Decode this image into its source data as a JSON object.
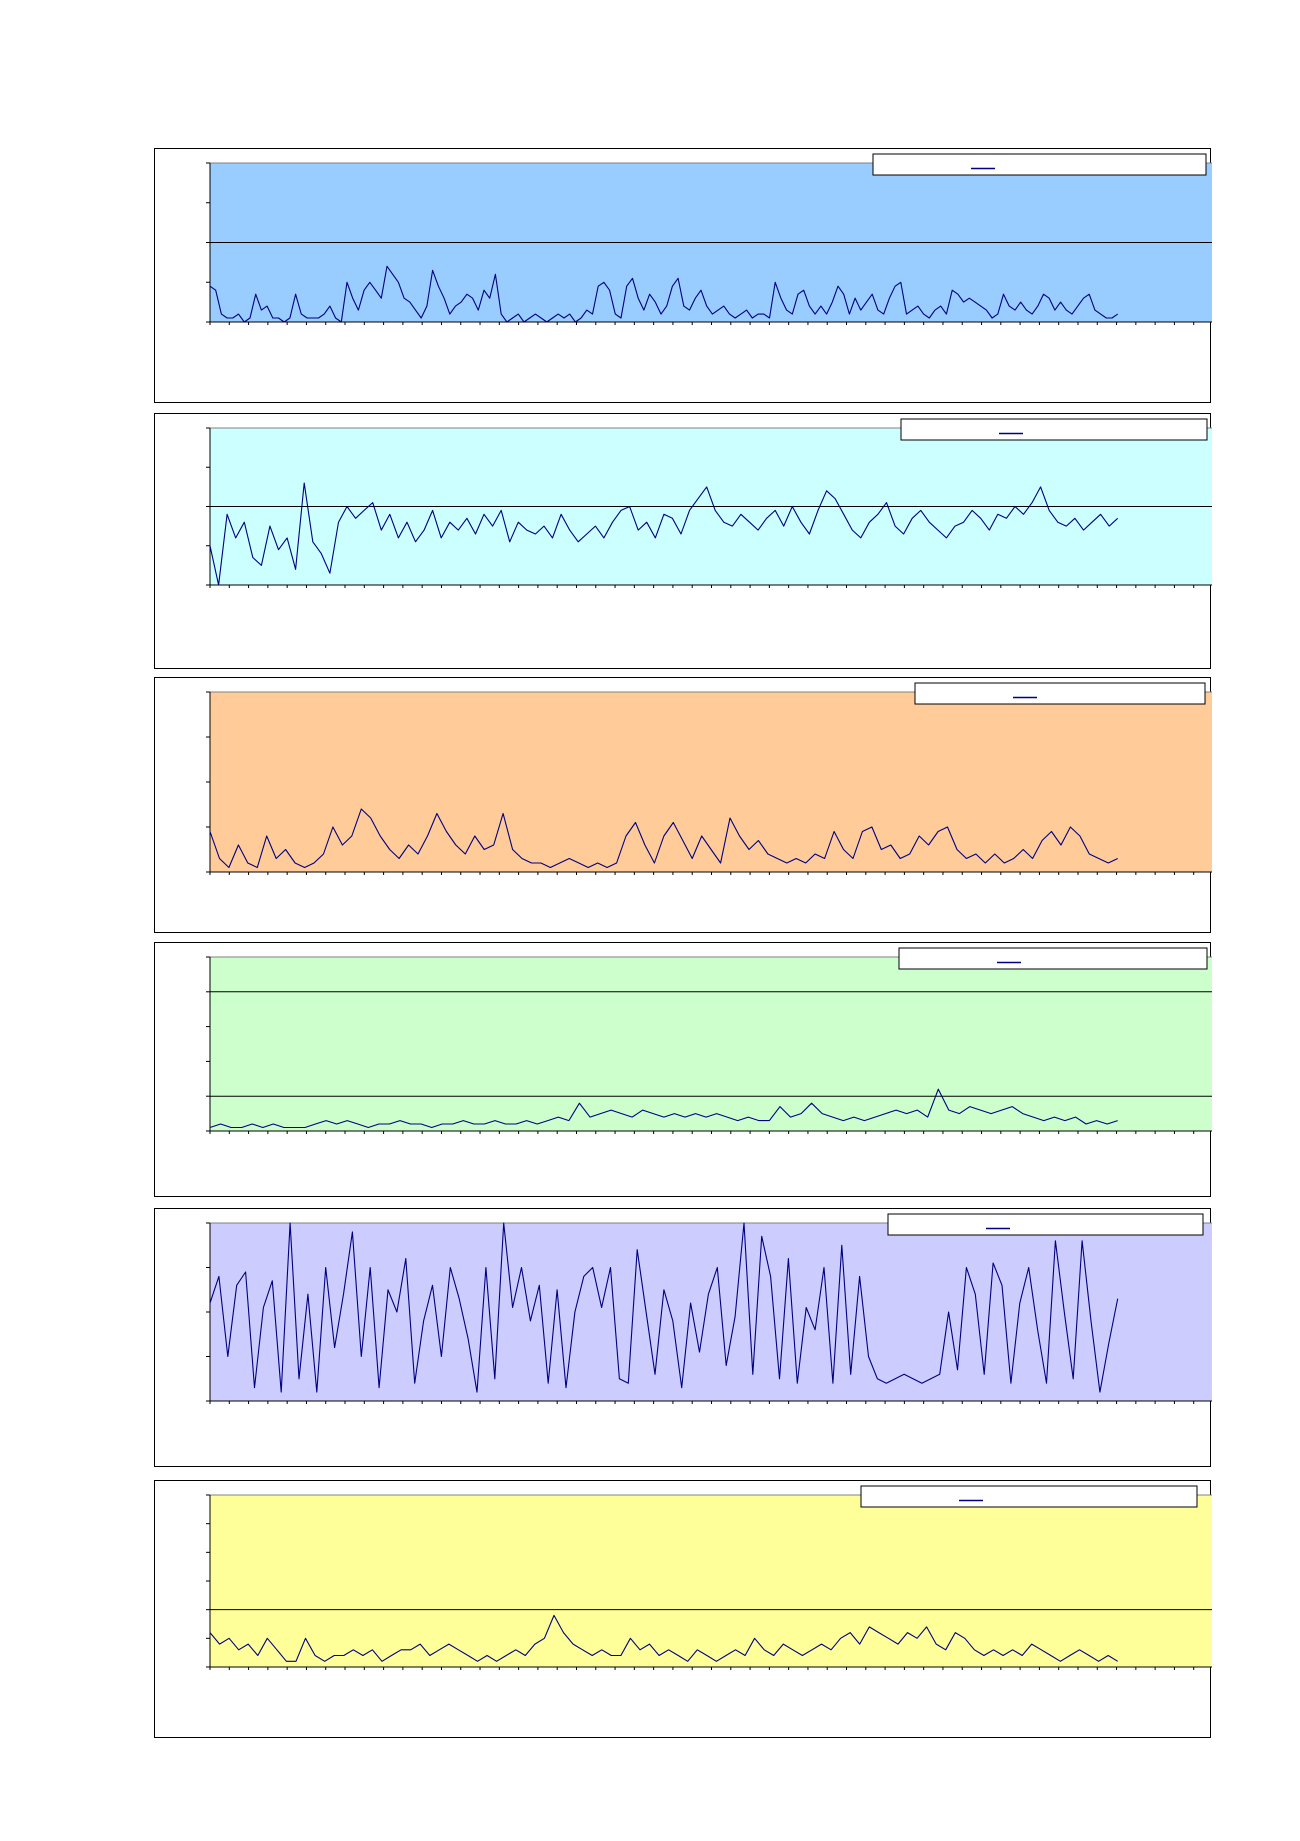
{
  "chart_data": [
    {
      "type": "line",
      "title": "",
      "xlabel": "",
      "ylabel": "",
      "ylim": [
        0,
        4
      ],
      "gridlines": [
        2
      ],
      "grid": true,
      "legend": "top-right",
      "legend_text": "",
      "plot_color": "#99ccff",
      "series": [
        {
          "color": "#000080",
          "values": [
            0.9,
            0.8,
            0.2,
            0.1,
            0.1,
            0.2,
            0.0,
            0.1,
            0.7,
            0.3,
            0.4,
            0.1,
            0.1,
            0.0,
            0.1,
            0.7,
            0.2,
            0.1,
            0.1,
            0.1,
            0.2,
            0.4,
            0.1,
            0.0,
            1.0,
            0.6,
            0.3,
            0.8,
            1.0,
            0.8,
            0.6,
            1.4,
            1.2,
            1.0,
            0.6,
            0.5,
            0.3,
            0.1,
            0.4,
            1.3,
            0.9,
            0.6,
            0.2,
            0.4,
            0.5,
            0.7,
            0.6,
            0.3,
            0.8,
            0.6,
            1.2,
            0.2,
            0.0,
            0.1,
            0.2,
            0.0,
            0.1,
            0.2,
            0.1,
            0.0,
            0.1,
            0.2,
            0.1,
            0.2,
            0.0,
            0.1,
            0.3,
            0.2,
            0.9,
            1.0,
            0.8,
            0.2,
            0.1,
            0.9,
            1.1,
            0.6,
            0.3,
            0.7,
            0.5,
            0.2,
            0.4,
            0.9,
            1.1,
            0.4,
            0.3,
            0.6,
            0.8,
            0.4,
            0.2,
            0.3,
            0.4,
            0.2,
            0.1,
            0.2,
            0.3,
            0.1,
            0.2,
            0.2,
            0.1,
            1.0,
            0.6,
            0.3,
            0.2,
            0.7,
            0.8,
            0.4,
            0.2,
            0.4,
            0.2,
            0.5,
            0.9,
            0.7,
            0.2,
            0.6,
            0.3,
            0.5,
            0.7,
            0.3,
            0.2,
            0.6,
            0.9,
            1.0,
            0.2,
            0.3,
            0.4,
            0.2,
            0.1,
            0.3,
            0.4,
            0.2,
            0.8,
            0.7,
            0.5,
            0.6,
            0.5,
            0.4,
            0.3,
            0.1,
            0.2,
            0.7,
            0.4,
            0.3,
            0.5,
            0.3,
            0.2,
            0.4,
            0.7,
            0.6,
            0.3,
            0.5,
            0.3,
            0.2,
            0.4,
            0.6,
            0.7,
            0.3,
            0.2,
            0.1,
            0.1,
            0.2
          ]
        }
      ]
    },
    {
      "type": "line",
      "title": "",
      "xlabel": "",
      "ylabel": "",
      "ylim": [
        0,
        4
      ],
      "gridlines": [
        2
      ],
      "grid": true,
      "legend": "top-right",
      "legend_text": "",
      "plot_color": "#ccffff",
      "series": [
        {
          "color": "#000080",
          "values": [
            1.0,
            0.0,
            1.8,
            1.2,
            1.6,
            0.7,
            0.5,
            1.5,
            0.9,
            1.2,
            0.4,
            2.6,
            1.1,
            0.8,
            0.3,
            1.6,
            2.0,
            1.7,
            1.9,
            2.1,
            1.4,
            1.8,
            1.2,
            1.6,
            1.1,
            1.4,
            1.9,
            1.2,
            1.6,
            1.4,
            1.7,
            1.3,
            1.8,
            1.5,
            1.9,
            1.1,
            1.6,
            1.4,
            1.3,
            1.5,
            1.2,
            1.8,
            1.4,
            1.1,
            1.3,
            1.5,
            1.2,
            1.6,
            1.9,
            2.0,
            1.4,
            1.6,
            1.2,
            1.8,
            1.7,
            1.3,
            1.9,
            2.2,
            2.5,
            1.9,
            1.6,
            1.5,
            1.8,
            1.6,
            1.4,
            1.7,
            1.9,
            1.5,
            2.0,
            1.6,
            1.3,
            1.9,
            2.4,
            2.2,
            1.8,
            1.4,
            1.2,
            1.6,
            1.8,
            2.1,
            1.5,
            1.3,
            1.7,
            1.9,
            1.6,
            1.4,
            1.2,
            1.5,
            1.6,
            1.9,
            1.7,
            1.4,
            1.8,
            1.7,
            2.0,
            1.8,
            2.1,
            2.5,
            1.9,
            1.6,
            1.5,
            1.7,
            1.4,
            1.6,
            1.8,
            1.5,
            1.7
          ]
        }
      ]
    },
    {
      "type": "line",
      "title": "",
      "xlabel": "",
      "ylabel": "",
      "ylim": [
        0,
        4
      ],
      "gridlines": [],
      "grid": false,
      "legend": "top-right",
      "legend_text": "",
      "plot_color": "#ffcc99",
      "series": [
        {
          "color": "#000080",
          "values": [
            0.9,
            0.3,
            0.1,
            0.6,
            0.2,
            0.1,
            0.8,
            0.3,
            0.5,
            0.2,
            0.1,
            0.2,
            0.4,
            1.0,
            0.6,
            0.8,
            1.4,
            1.2,
            0.8,
            0.5,
            0.3,
            0.6,
            0.4,
            0.8,
            1.3,
            0.9,
            0.6,
            0.4,
            0.8,
            0.5,
            0.6,
            1.3,
            0.5,
            0.3,
            0.2,
            0.2,
            0.1,
            0.2,
            0.3,
            0.2,
            0.1,
            0.2,
            0.1,
            0.2,
            0.8,
            1.1,
            0.6,
            0.2,
            0.8,
            1.1,
            0.7,
            0.3,
            0.8,
            0.5,
            0.2,
            1.2,
            0.8,
            0.5,
            0.7,
            0.4,
            0.3,
            0.2,
            0.3,
            0.2,
            0.4,
            0.3,
            0.9,
            0.5,
            0.3,
            0.9,
            1.0,
            0.5,
            0.6,
            0.3,
            0.4,
            0.8,
            0.6,
            0.9,
            1.0,
            0.5,
            0.3,
            0.4,
            0.2,
            0.4,
            0.2,
            0.3,
            0.5,
            0.3,
            0.7,
            0.9,
            0.6,
            1.0,
            0.8,
            0.4,
            0.3,
            0.2,
            0.3
          ]
        }
      ]
    },
    {
      "type": "line",
      "title": "",
      "xlabel": "",
      "ylabel": "",
      "ylim": [
        0,
        5
      ],
      "gridlines": [
        1,
        4
      ],
      "grid": true,
      "legend": "top-right",
      "legend_text": "",
      "plot_color": "#ccffcc",
      "series": [
        {
          "color": "#000080",
          "values": [
            0.1,
            0.2,
            0.1,
            0.1,
            0.2,
            0.1,
            0.2,
            0.1,
            0.1,
            0.1,
            0.2,
            0.3,
            0.2,
            0.3,
            0.2,
            0.1,
            0.2,
            0.2,
            0.3,
            0.2,
            0.2,
            0.1,
            0.2,
            0.2,
            0.3,
            0.2,
            0.2,
            0.3,
            0.2,
            0.2,
            0.3,
            0.2,
            0.3,
            0.4,
            0.3,
            0.8,
            0.4,
            0.5,
            0.6,
            0.5,
            0.4,
            0.6,
            0.5,
            0.4,
            0.5,
            0.4,
            0.5,
            0.4,
            0.5,
            0.4,
            0.3,
            0.4,
            0.3,
            0.3,
            0.7,
            0.4,
            0.5,
            0.8,
            0.5,
            0.4,
            0.3,
            0.4,
            0.3,
            0.4,
            0.5,
            0.6,
            0.5,
            0.6,
            0.4,
            1.2,
            0.6,
            0.5,
            0.7,
            0.6,
            0.5,
            0.6,
            0.7,
            0.5,
            0.4,
            0.3,
            0.4,
            0.3,
            0.4,
            0.2,
            0.3,
            0.2,
            0.3
          ]
        }
      ]
    },
    {
      "type": "line",
      "title": "",
      "xlabel": "",
      "ylabel": "",
      "ylim": [
        0,
        4
      ],
      "gridlines": [],
      "grid": false,
      "legend": "top-right",
      "legend_text": "",
      "plot_color": "#ccccff",
      "series": [
        {
          "color": "#000080",
          "values": [
            2.2,
            2.8,
            1.0,
            2.6,
            2.9,
            0.3,
            2.1,
            2.7,
            0.2,
            4.0,
            0.5,
            2.4,
            0.2,
            3.0,
            1.2,
            2.4,
            3.8,
            1.0,
            3.0,
            0.3,
            2.5,
            2.0,
            3.2,
            0.4,
            1.8,
            2.6,
            1.0,
            3.0,
            2.3,
            1.4,
            0.2,
            3.0,
            0.5,
            4.0,
            2.1,
            3.0,
            1.8,
            2.6,
            0.4,
            2.5,
            0.3,
            2.0,
            2.8,
            3.0,
            2.1,
            3.0,
            0.5,
            0.4,
            3.4,
            2.0,
            0.6,
            2.5,
            1.8,
            0.3,
            2.2,
            1.1,
            2.4,
            3.0,
            0.8,
            1.9,
            4.0,
            0.6,
            3.7,
            2.8,
            0.5,
            3.2,
            0.4,
            2.1,
            1.6,
            3.0,
            0.4,
            3.5,
            0.6,
            2.8,
            1.0,
            0.5,
            0.4,
            0.5,
            0.6,
            0.5,
            0.4,
            0.5,
            0.6,
            2.0,
            0.7,
            3.0,
            2.4,
            0.6,
            3.1,
            2.6,
            0.4,
            2.2,
            3.0,
            1.6,
            0.4,
            3.6,
            2.0,
            0.5,
            3.6,
            1.8,
            0.2,
            1.3,
            2.3
          ]
        }
      ]
    },
    {
      "type": "line",
      "title": "",
      "xlabel": "",
      "ylabel": "",
      "ylim": [
        0,
        3
      ],
      "gridlines": [
        1
      ],
      "grid": true,
      "legend": "top-right",
      "legend_text": "",
      "plot_color": "#ffff99",
      "series": [
        {
          "color": "#000080",
          "values": [
            0.6,
            0.4,
            0.5,
            0.3,
            0.4,
            0.2,
            0.5,
            0.3,
            0.1,
            0.1,
            0.5,
            0.2,
            0.1,
            0.2,
            0.2,
            0.3,
            0.2,
            0.3,
            0.1,
            0.2,
            0.3,
            0.3,
            0.4,
            0.2,
            0.3,
            0.4,
            0.3,
            0.2,
            0.1,
            0.2,
            0.1,
            0.2,
            0.3,
            0.2,
            0.4,
            0.5,
            0.9,
            0.6,
            0.4,
            0.3,
            0.2,
            0.3,
            0.2,
            0.2,
            0.5,
            0.3,
            0.4,
            0.2,
            0.3,
            0.2,
            0.1,
            0.3,
            0.2,
            0.1,
            0.2,
            0.3,
            0.2,
            0.5,
            0.3,
            0.2,
            0.4,
            0.3,
            0.2,
            0.3,
            0.4,
            0.3,
            0.5,
            0.6,
            0.4,
            0.7,
            0.6,
            0.5,
            0.4,
            0.6,
            0.5,
            0.7,
            0.4,
            0.3,
            0.6,
            0.5,
            0.3,
            0.2,
            0.3,
            0.2,
            0.3,
            0.2,
            0.4,
            0.3,
            0.2,
            0.1,
            0.2,
            0.3,
            0.2,
            0.1,
            0.2,
            0.1
          ]
        }
      ]
    }
  ]
}
